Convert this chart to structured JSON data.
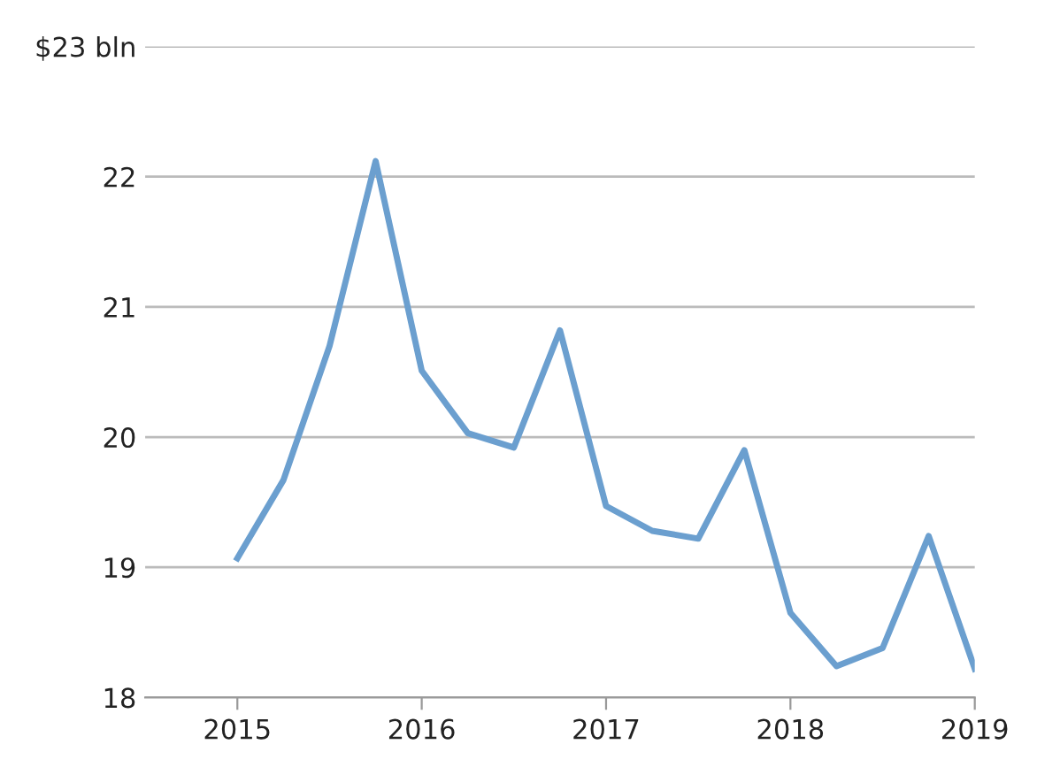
{
  "chart_data": {
    "type": "line",
    "x": [
      2015.0,
      2015.25,
      2015.5,
      2015.75,
      2016.0,
      2016.25,
      2016.5,
      2016.75,
      2017.0,
      2017.25,
      2017.5,
      2017.75,
      2018.0,
      2018.25,
      2018.5,
      2018.75,
      2019.0
    ],
    "series": [
      {
        "color": "#6b9fcf",
        "values": [
          19.07,
          19.67,
          20.7,
          22.12,
          20.51,
          20.03,
          19.92,
          20.82,
          19.47,
          19.28,
          19.22,
          19.9,
          18.65,
          18.24,
          18.38,
          19.24,
          18.22
        ]
      }
    ],
    "xlim": [
      2014.5,
      2019.0
    ],
    "xticks": [
      2015,
      2016,
      2017,
      2018,
      2019
    ],
    "ylim": [
      18,
      23
    ],
    "yticks": [
      18,
      19,
      20,
      21,
      22,
      {
        "value": 23,
        "label": "$23 bln"
      }
    ],
    "grid": "y",
    "marker": "none",
    "line_style": "solid",
    "legend": false
  }
}
